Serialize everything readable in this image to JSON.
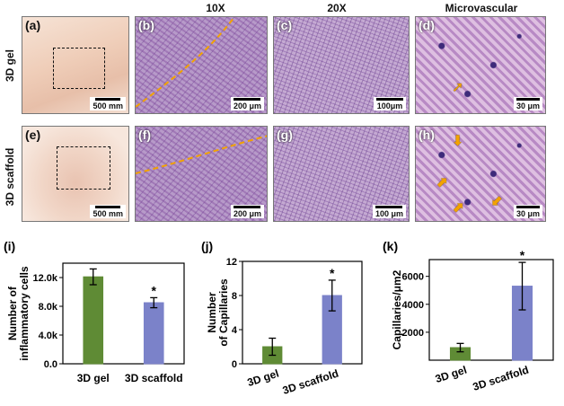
{
  "column_headers": [
    "10X",
    "20X",
    "Microvascular"
  ],
  "row_labels": [
    "3D gel",
    "3D scaffold"
  ],
  "panels": [
    {
      "label": "(a)",
      "scale": "500 mm"
    },
    {
      "label": "(b)",
      "scale": "200 μm"
    },
    {
      "label": "(c)",
      "scale": "100μm"
    },
    {
      "label": "(d)",
      "scale": "30 μm"
    },
    {
      "label": "(e)",
      "scale": "500 mm"
    },
    {
      "label": "(f)",
      "scale": "200 μm"
    },
    {
      "label": "(g)",
      "scale": "100 μm"
    },
    {
      "label": "(h)",
      "scale": "30 μm"
    }
  ],
  "colors": {
    "gel_bar": "#5f8b35",
    "scaffold_bar": "#7b82c9",
    "annotation_arrow": "#f2a200",
    "boundary_line": "#f2a200"
  },
  "chart_data": [
    {
      "panel": "(i)",
      "type": "bar",
      "categories": [
        "3D gel",
        "3D scaffold"
      ],
      "values": [
        12100,
        8500
      ],
      "errors": [
        1100,
        700
      ],
      "significance": [
        "",
        "*"
      ],
      "ylabel_lines": [
        "Number of",
        "inflammatory cells"
      ],
      "ylim": [
        0,
        14000
      ],
      "yticks": [
        0,
        4000,
        8000,
        12000
      ],
      "ytick_labels": [
        "0.0",
        "4.0k",
        "8.0k",
        "12.0k"
      ]
    },
    {
      "panel": "(j)",
      "type": "bar",
      "categories": [
        "3D gel",
        "3D scaffold"
      ],
      "values": [
        2,
        8
      ],
      "errors": [
        1,
        1.8
      ],
      "significance": [
        "",
        "*"
      ],
      "ylabel_lines": [
        "Number",
        "of Capillaries"
      ],
      "ylim": [
        0,
        12
      ],
      "yticks": [
        0,
        4,
        8,
        12
      ],
      "ytick_labels": [
        "0",
        "4",
        "8",
        "12"
      ]
    },
    {
      "panel": "(k)",
      "type": "bar",
      "categories": [
        "3D gel",
        "3D scaffold"
      ],
      "values": [
        900,
        5300
      ],
      "errors": [
        300,
        1700
      ],
      "significance": [
        "",
        "*"
      ],
      "ylabel_lines": [
        "Capillaries/μm2"
      ],
      "ylim": [
        0,
        7200
      ],
      "yticks": [
        2000,
        4000,
        6000
      ],
      "ytick_labels": [
        "2000",
        "4000",
        "6000"
      ]
    }
  ]
}
